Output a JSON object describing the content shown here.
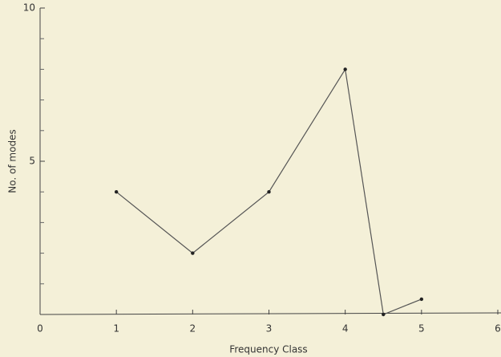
{
  "chart_data": {
    "type": "line",
    "x": [
      1,
      2,
      3,
      4,
      4.5,
      5
    ],
    "series": [
      {
        "color": "#555555",
        "values": [
          4,
          2,
          4,
          8,
          0,
          0.5
        ]
      }
    ],
    "xlim": [
      0,
      6
    ],
    "xticks": [
      0,
      1,
      2,
      3,
      4,
      5,
      6
    ],
    "ylim": [
      0,
      10
    ],
    "yticks": [
      5,
      10
    ],
    "yminorticks": [
      1,
      2,
      3,
      4,
      6,
      7,
      8,
      9
    ],
    "xlabel": "Frequency Class",
    "ylabel": "No. of modes"
  }
}
